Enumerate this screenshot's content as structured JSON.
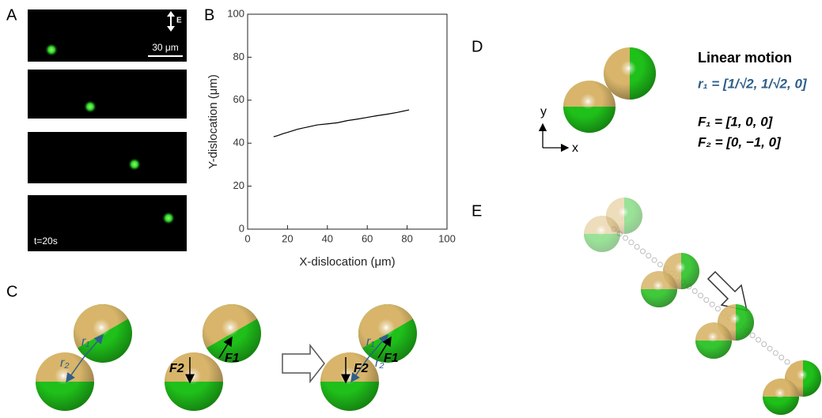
{
  "panels": {
    "a": {
      "label": "A",
      "field": "E",
      "scale": "30 μm",
      "time": "t=20s"
    },
    "b": {
      "label": "B"
    },
    "c": {
      "label": "C",
      "r1": "r₁",
      "r2": "r₂",
      "f1": "F1",
      "f2": "F2"
    },
    "d": {
      "label": "D",
      "title": "Linear motion",
      "eq1": "r₁ = [1/√2, 1/√2, 0]",
      "eq2": "F₁ = [1, 0, 0]",
      "eq3": "F₂ = [0, −1, 0]",
      "x_axis": "x",
      "y_axis": "y"
    },
    "e": {
      "label": "E"
    }
  },
  "chart_data": {
    "type": "line",
    "x_label": "X-dislocation (μm)",
    "y_label": "Y-dislocation (μm)",
    "x": [
      13,
      15,
      18,
      20,
      25,
      30,
      35,
      40,
      45,
      50,
      55,
      60,
      65,
      70,
      75,
      81
    ],
    "series": [
      {
        "color": "#000000",
        "values": [
          43,
          43.5,
          44.5,
          45,
          46.5,
          47.5,
          48.5,
          49,
          49.5,
          50.5,
          51.2,
          52,
          52.8,
          53.5,
          54.3,
          55.5
        ]
      }
    ],
    "xlim": [
      0,
      100
    ],
    "xticks": [
      0,
      20,
      40,
      60,
      80,
      100
    ],
    "ylim": [
      0,
      100
    ],
    "yticks": [
      0,
      20,
      40,
      60,
      80,
      100
    ]
  }
}
